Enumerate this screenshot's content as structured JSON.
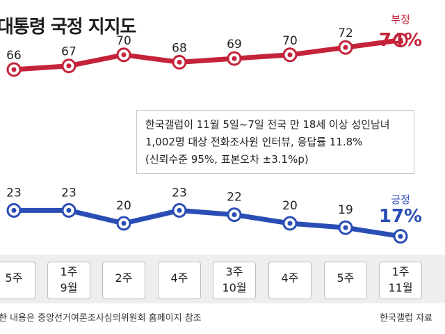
{
  "title": "대통령 국정 지지도",
  "note": {
    "line1": "한국갤럽이 11월 5일~7일 전국 만 18세 이상 성인남녀",
    "line2": "1,002명 대상 전화조사원 인터뷰, 응답률 11.8%",
    "line3": "(신뢰수준 95%, 표본오차 ±3.1%p)"
  },
  "footer": {
    "left": "한 내용은 중앙선거여론조사심의위원회 홈페이지 참조",
    "right": "한국갤럽 자료"
  },
  "colors": {
    "negative": "#c4233a",
    "positive": "#2a4db5",
    "band": "#eeeeee"
  },
  "chart_data": {
    "type": "line",
    "categories": [
      [
        "5주",
        ""
      ],
      [
        "1주",
        "9월"
      ],
      [
        "2주",
        ""
      ],
      [
        "4주",
        ""
      ],
      [
        "3주",
        "10월"
      ],
      [
        "4주",
        ""
      ],
      [
        "5주",
        ""
      ],
      [
        "1주",
        "11월"
      ]
    ],
    "series": [
      {
        "name": "부정",
        "values": [
          66,
          67,
          70,
          68,
          69,
          70,
          72,
          74
        ],
        "last_label": "74%"
      },
      {
        "name": "긍정",
        "values": [
          23,
          23,
          20,
          23,
          22,
          20,
          19,
          17
        ],
        "last_label": "17%"
      }
    ]
  }
}
